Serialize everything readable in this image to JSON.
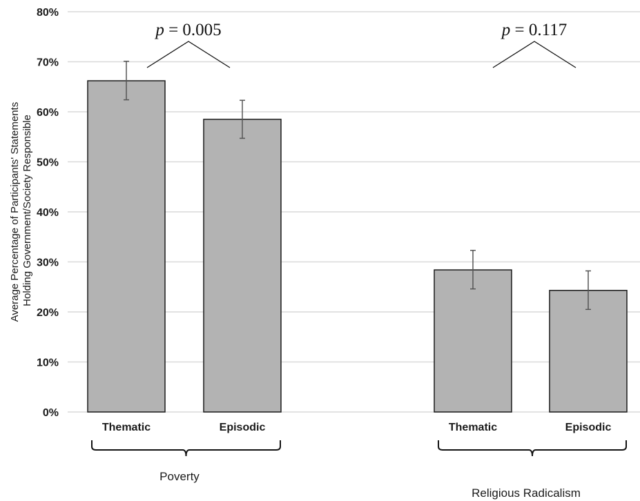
{
  "chart_data": {
    "type": "bar",
    "ylabel_lines": [
      "Average Percentage of Participants' Statements",
      "Holding Government/Society Responsible"
    ],
    "y_ticks": [
      "0%",
      "10%",
      "20%",
      "30%",
      "40%",
      "50%",
      "60%",
      "70%",
      "80%"
    ],
    "ylim": [
      0,
      80
    ],
    "grid": true,
    "groups": [
      {
        "name": "Poverty",
        "p_prefix": "p",
        "p_value": "= 0.005",
        "bars": [
          {
            "category": "Thematic",
            "value": 66.2,
            "err_low": 62.4,
            "err_high": 70.1
          },
          {
            "category": "Episodic",
            "value": 58.5,
            "err_low": 54.7,
            "err_high": 62.3
          }
        ]
      },
      {
        "name": "Religious Radicalism",
        "p_prefix": "p",
        "p_value": "= 0.117",
        "bars": [
          {
            "category": "Thematic",
            "value": 28.4,
            "err_low": 24.6,
            "err_high": 32.3
          },
          {
            "category": "Episodic",
            "value": 24.3,
            "err_low": 20.5,
            "err_high": 28.2
          }
        ]
      }
    ],
    "colors": {
      "bar_fill": "#b3b3b3",
      "bar_stroke": "#1a1a1a",
      "grid": "#d9d9d9",
      "error": "#555555"
    }
  }
}
